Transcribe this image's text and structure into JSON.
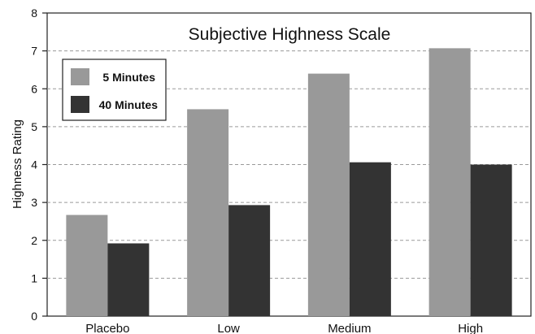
{
  "chart_data": {
    "type": "bar",
    "title": "Subjective Highness Scale",
    "xlabel": "",
    "ylabel": "Highness Rating",
    "categories": [
      "Placebo",
      "Low",
      "Medium",
      "High"
    ],
    "series": [
      {
        "name": "5 Minutes",
        "values": [
          2.67,
          5.46,
          6.4,
          7.07
        ],
        "color": "#999999"
      },
      {
        "name": "40 Minutes",
        "values": [
          1.92,
          2.93,
          4.06,
          4.0
        ],
        "color": "#333333"
      }
    ],
    "ylim": [
      0,
      8
    ],
    "yticks": [
      "0",
      "1",
      "2",
      "3",
      "4",
      "5",
      "6",
      "7",
      "8"
    ],
    "grid": true,
    "legend_position": "top-left"
  }
}
